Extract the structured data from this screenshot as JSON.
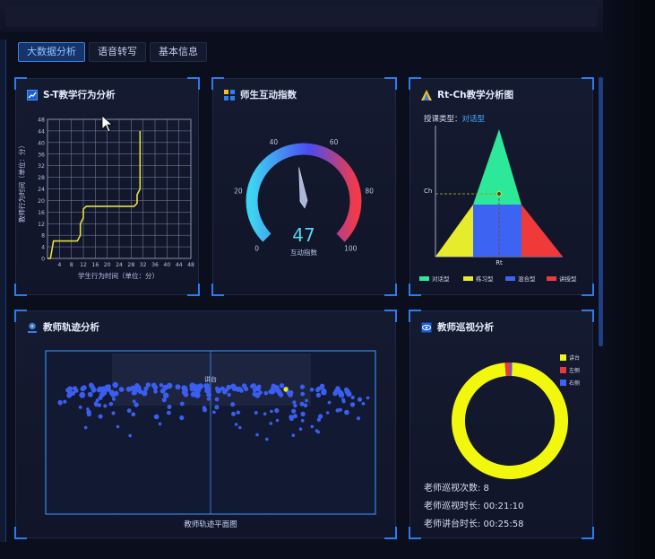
{
  "tabs": [
    {
      "label": "大数据分析",
      "active": true
    },
    {
      "label": "语音转写",
      "active": false
    },
    {
      "label": "基本信息",
      "active": false
    }
  ],
  "st_panel": {
    "title": "S-T教学行为分析",
    "xlabel": "学生行为时间（单位：分）",
    "ylabel": "教师行为时间（单位：分）",
    "x_ticks": [
      "4",
      "8",
      "12",
      "16",
      "20",
      "24",
      "28",
      "32",
      "36",
      "40",
      "44",
      "48"
    ],
    "y_ticks": [
      "0",
      "4",
      "8",
      "12",
      "16",
      "20",
      "24",
      "28",
      "32",
      "36",
      "40",
      "44",
      "48"
    ]
  },
  "interaction_panel": {
    "title": "师生互动指数",
    "value": "47",
    "label": "互动指数",
    "ticks": [
      "0",
      "20",
      "40",
      "60",
      "80",
      "100"
    ]
  },
  "rtch_panel": {
    "title": "Rt-Ch教学分析图",
    "type_label": "授课类型：",
    "type_value": "对话型",
    "ch_label": "Ch",
    "rt_label": "Rt",
    "legend": [
      {
        "label": "对话型",
        "color": "#2ee89a"
      },
      {
        "label": "练习型",
        "color": "#e6ec2c"
      },
      {
        "label": "混合型",
        "color": "#3d63f2"
      },
      {
        "label": "讲授型",
        "color": "#f03a3a"
      }
    ]
  },
  "track_panel": {
    "title": "教师轨迹分析",
    "stage_label": "讲台",
    "caption": "教师轨迹平面图"
  },
  "patrol_panel": {
    "title": "教师巡视分析",
    "legend": [
      {
        "label": "讲台",
        "color": "#f2f70e"
      },
      {
        "label": "左侧",
        "color": "#e83a3a"
      },
      {
        "label": "右侧",
        "color": "#3d63f2"
      }
    ],
    "count_line": "老师巡视次数: 8",
    "patrol_time_line": "老师巡视时长: 00:21:10",
    "lecture_time_line": "老师讲台时长: 00:25:58"
  },
  "chart_data": [
    {
      "type": "line",
      "title": "S-T教学行为分析",
      "xlabel": "学生行为时间（单位：分）",
      "ylabel": "教师行为时间（单位：分）",
      "xlim": [
        0,
        48
      ],
      "ylim": [
        0,
        48
      ],
      "grid": true,
      "x": [
        0,
        1,
        2,
        10,
        11,
        11,
        12,
        12,
        13,
        29,
        30,
        30,
        31,
        31
      ],
      "y": [
        0,
        0,
        6,
        6,
        8,
        12,
        14,
        17,
        18,
        18,
        19,
        22,
        24,
        44
      ]
    },
    {
      "type": "gauge",
      "title": "师生互动指数",
      "value": 47,
      "min": 0,
      "max": 100
    },
    {
      "type": "pie",
      "title": "教师巡视分析",
      "labels": [
        "讲台",
        "左侧",
        "右侧"
      ],
      "values": [
        98,
        1.5,
        0.5
      ],
      "donut": true
    }
  ]
}
